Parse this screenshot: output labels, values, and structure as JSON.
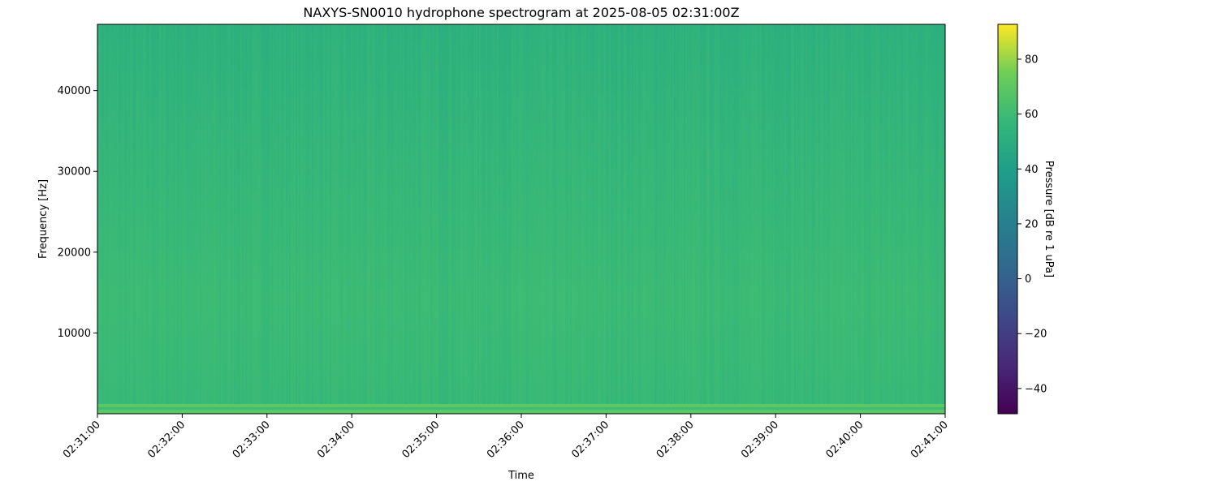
{
  "chart_data": {
    "type": "heatmap",
    "title": "NAXYS-SN0010 hydrophone spectrogram at 2025-08-05 02:31:00Z",
    "xlabel": "Time",
    "ylabel": "Frequency [Hz]",
    "x_ticks": [
      "02:31:00",
      "02:32:00",
      "02:33:00",
      "02:34:00",
      "02:35:00",
      "02:36:00",
      "02:37:00",
      "02:38:00",
      "02:39:00",
      "02:40:00",
      "02:41:00"
    ],
    "xlim": [
      "02:31:00",
      "02:41:00"
    ],
    "y_ticks": [
      10000,
      20000,
      30000,
      40000
    ],
    "ylim": [
      0,
      48200
    ],
    "colorbar": {
      "label": "Pressure [dB re 1 uPa]",
      "ticks": [
        -40,
        -20,
        0,
        20,
        40,
        60,
        80
      ],
      "range": [
        -49.2,
        92.7
      ],
      "colormap": "viridis"
    },
    "typical_level_db": 47,
    "low_band": {
      "freq_range_hz": [
        0,
        1000
      ],
      "level_db": 55
    },
    "colors": {
      "field_top": "#2eb17e",
      "field_mid": "#3cbb75",
      "low_band": "#5ac864"
    }
  }
}
